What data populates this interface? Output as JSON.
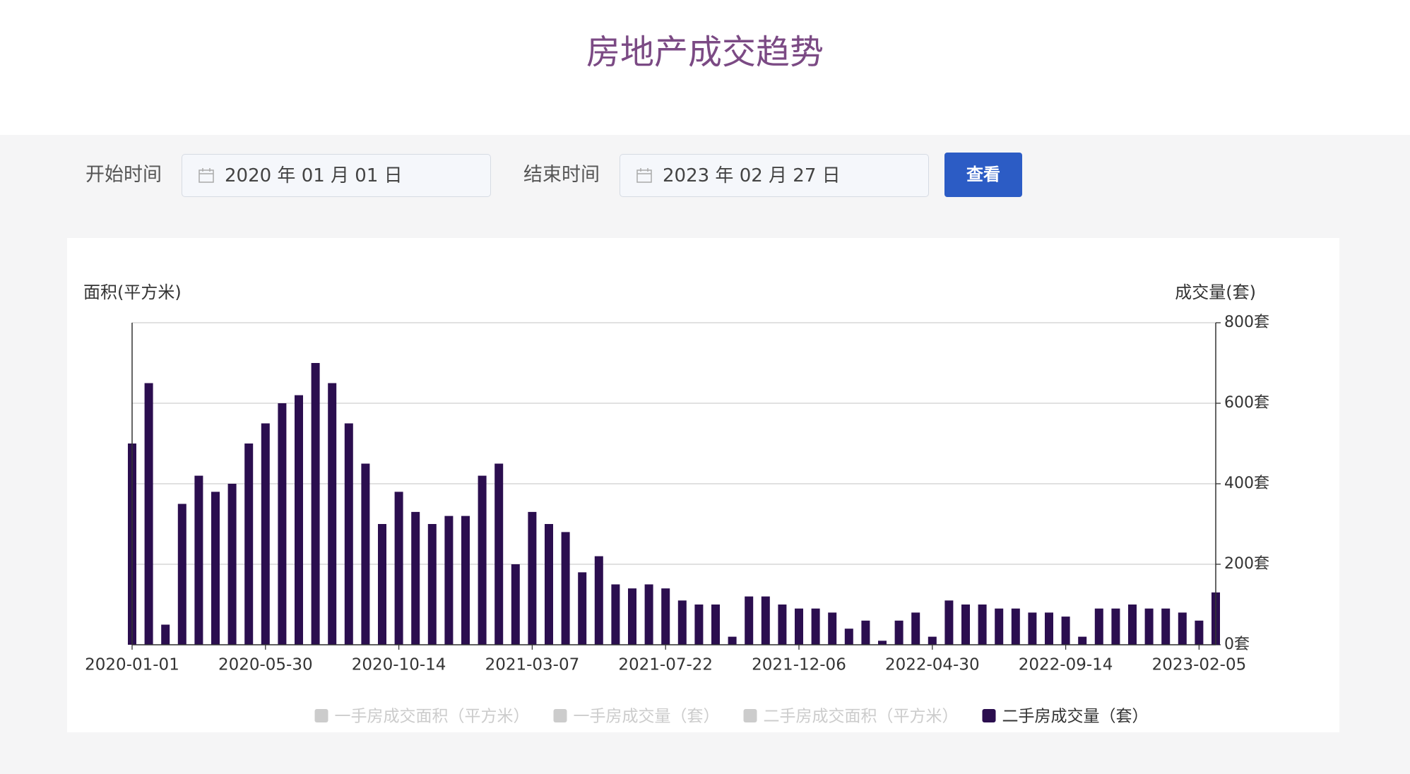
{
  "header": {
    "title": "房地产成交趋势"
  },
  "filters": {
    "start_label": "开始时间",
    "start_date": "2020 年 01 月 01 日",
    "end_label": "结束时间",
    "end_date": "2023 年 02 月 27 日",
    "button": "查看"
  },
  "chart_data": {
    "type": "bar",
    "y_label": "面积(平方米)",
    "y2_label": "成交量(套)",
    "categories": [
      "2020-01-01",
      null,
      null,
      null,
      null,
      null,
      null,
      null,
      "2020-05-30",
      null,
      null,
      null,
      null,
      null,
      null,
      null,
      "2020-10-14",
      null,
      null,
      null,
      null,
      null,
      null,
      null,
      "2021-03-07",
      null,
      null,
      null,
      null,
      null,
      null,
      null,
      "2021-07-22",
      null,
      null,
      null,
      null,
      null,
      null,
      null,
      "2021-12-06",
      null,
      null,
      null,
      null,
      null,
      null,
      null,
      "2022-04-30",
      null,
      null,
      null,
      null,
      null,
      null,
      null,
      "2022-09-14",
      null,
      null,
      null,
      null,
      null,
      null,
      null,
      "2023-02-05",
      null
    ],
    "series": [
      {
        "name": "一手房成交面积（平方米）",
        "color": "#cccccc",
        "hidden": true
      },
      {
        "name": "一手房成交量（套）",
        "color": "#cccccc",
        "hidden": true
      },
      {
        "name": "二手房成交面积（平方米）",
        "color": "#cccccc",
        "hidden": true
      },
      {
        "name": "二手房成交量（套）",
        "color": "#2b0e4f",
        "axis": "y2",
        "values": [
          500,
          650,
          50,
          350,
          420,
          380,
          400,
          500,
          550,
          600,
          620,
          700,
          650,
          550,
          450,
          300,
          380,
          330,
          300,
          320,
          320,
          420,
          450,
          200,
          330,
          300,
          280,
          180,
          220,
          150,
          140,
          150,
          140,
          110,
          100,
          100,
          20,
          120,
          120,
          100,
          90,
          90,
          80,
          40,
          60,
          10,
          60,
          80,
          20,
          110,
          100,
          100,
          90,
          90,
          80,
          80,
          70,
          20,
          90,
          90,
          100,
          90,
          90,
          80,
          60,
          130
        ]
      }
    ],
    "y2lim": [
      0,
      800
    ],
    "y2ticks": [
      {
        "value": 0,
        "label": "0套"
      },
      {
        "value": 200,
        "label": "200套"
      },
      {
        "value": 400,
        "label": "400套"
      },
      {
        "value": 600,
        "label": "600套"
      },
      {
        "value": 800,
        "label": "800套"
      }
    ],
    "grid": true
  }
}
